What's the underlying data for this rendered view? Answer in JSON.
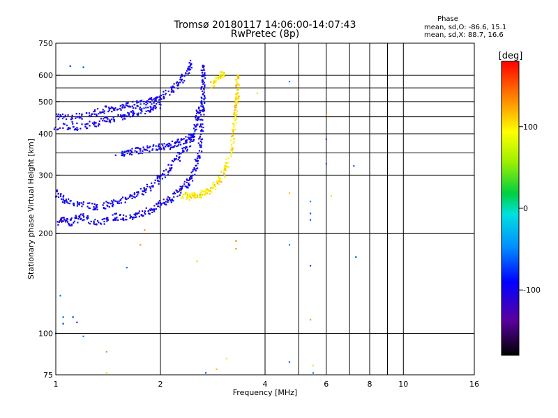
{
  "chart_data": {
    "type": "scatter",
    "title": "Tromsø 20180117 14:06:00-14:07:43",
    "subtitle": "RwPretec (8p)",
    "xlabel": "Frequency [MHz]",
    "ylabel": "Stationary phase Virtual Height [km]",
    "x_scale": "log",
    "y_scale": "log",
    "xlim": [
      1,
      16
    ],
    "ylim": [
      75,
      750
    ],
    "grid": true,
    "x_ticks": [
      1,
      2,
      4,
      6,
      8,
      10,
      16
    ],
    "x_minor": [
      5,
      7,
      9
    ],
    "y_ticks": [
      75,
      100,
      200,
      300,
      400,
      500,
      600,
      750
    ],
    "y_extra_grid": [
      350,
      450,
      550
    ],
    "stats": {
      "title": "Phase",
      "line_o": "mean, sd,O: -86.6, 15.1",
      "line_x": "mean, sd,X:  88.7, 16.6"
    },
    "colorbar": {
      "label": "[deg]",
      "ticks": [
        100,
        0,
        -100
      ],
      "range": [
        -180,
        180
      ]
    },
    "series": [
      {
        "trace": "lower-o-mode",
        "phase": -100,
        "points": [
          [
            1.0,
            215
          ],
          [
            1.05,
            220
          ],
          [
            1.1,
            215
          ],
          [
            1.15,
            222
          ],
          [
            1.2,
            225
          ],
          [
            1.3,
            215
          ],
          [
            1.4,
            220
          ],
          [
            1.5,
            225
          ],
          [
            1.6,
            222
          ],
          [
            1.7,
            228
          ],
          [
            1.8,
            232
          ],
          [
            1.9,
            238
          ],
          [
            2.0,
            245
          ],
          [
            2.1,
            252
          ],
          [
            2.2,
            260
          ],
          [
            2.3,
            270
          ],
          [
            2.4,
            285
          ],
          [
            2.5,
            305
          ],
          [
            2.55,
            330
          ],
          [
            2.6,
            360
          ],
          [
            2.62,
            400
          ],
          [
            2.63,
            440
          ],
          [
            2.64,
            480
          ],
          [
            2.65,
            520
          ],
          [
            2.66,
            560
          ],
          [
            2.66,
            600
          ],
          [
            2.65,
            640
          ]
        ]
      },
      {
        "trace": "lower-o-mode-2",
        "phase": -100,
        "points": [
          [
            1.0,
            265
          ],
          [
            1.05,
            255
          ],
          [
            1.1,
            248
          ],
          [
            1.2,
            245
          ],
          [
            1.3,
            240
          ],
          [
            1.4,
            245
          ],
          [
            1.5,
            248
          ],
          [
            1.6,
            255
          ],
          [
            1.7,
            262
          ],
          [
            1.8,
            270
          ],
          [
            1.9,
            280
          ],
          [
            2.0,
            295
          ],
          [
            2.1,
            310
          ],
          [
            2.2,
            330
          ],
          [
            2.3,
            350
          ],
          [
            2.4,
            370
          ],
          [
            2.5,
            400
          ],
          [
            2.55,
            440
          ],
          [
            2.58,
            480
          ]
        ]
      },
      {
        "trace": "upper-o-mode",
        "phase": -100,
        "points": [
          [
            1.0,
            450
          ],
          [
            1.1,
            445
          ],
          [
            1.2,
            455
          ],
          [
            1.3,
            465
          ],
          [
            1.4,
            475
          ],
          [
            1.5,
            480
          ],
          [
            1.6,
            485
          ],
          [
            1.7,
            490
          ],
          [
            1.8,
            495
          ],
          [
            1.9,
            505
          ],
          [
            2.0,
            515
          ],
          [
            2.1,
            530
          ],
          [
            2.2,
            550
          ],
          [
            2.3,
            580
          ],
          [
            2.4,
            620
          ],
          [
            2.45,
            650
          ]
        ]
      },
      {
        "trace": "upper-o-mode-2",
        "phase": -100,
        "points": [
          [
            1.0,
            420
          ],
          [
            1.1,
            418
          ],
          [
            1.2,
            422
          ],
          [
            1.3,
            430
          ],
          [
            1.4,
            440
          ],
          [
            1.5,
            445
          ],
          [
            1.6,
            455
          ],
          [
            1.7,
            460
          ],
          [
            1.8,
            470
          ],
          [
            1.9,
            478
          ],
          [
            2.0,
            490
          ]
        ]
      },
      {
        "trace": "middle-o-mode",
        "phase": -100,
        "points": [
          [
            1.5,
            345
          ],
          [
            1.6,
            352
          ],
          [
            1.7,
            355
          ],
          [
            1.8,
            358
          ],
          [
            1.9,
            362
          ],
          [
            2.0,
            365
          ],
          [
            2.1,
            368
          ],
          [
            2.2,
            372
          ],
          [
            2.3,
            380
          ],
          [
            2.4,
            385
          ],
          [
            2.5,
            400
          ]
        ]
      },
      {
        "trace": "x-mode",
        "phase": 100,
        "points": [
          [
            2.3,
            262
          ],
          [
            2.4,
            258
          ],
          [
            2.5,
            260
          ],
          [
            2.6,
            262
          ],
          [
            2.7,
            266
          ],
          [
            2.8,
            272
          ],
          [
            2.9,
            282
          ],
          [
            3.0,
            295
          ],
          [
            3.1,
            320
          ],
          [
            3.2,
            360
          ],
          [
            3.25,
            400
          ],
          [
            3.28,
            440
          ],
          [
            3.3,
            480
          ],
          [
            3.32,
            520
          ],
          [
            3.33,
            560
          ],
          [
            3.34,
            600
          ]
        ]
      },
      {
        "trace": "x-mode-upper",
        "phase": 100,
        "points": [
          [
            2.8,
            560
          ],
          [
            2.9,
            580
          ],
          [
            3.0,
            600
          ],
          [
            3.05,
            610
          ]
        ]
      },
      {
        "trace": "scattered",
        "phase": -60,
        "points": [
          [
            1.1,
            640
          ],
          [
            1.2,
            635
          ],
          [
            4.7,
            575
          ],
          [
            6.0,
            385
          ],
          [
            6.0,
            325
          ],
          [
            7.2,
            320
          ],
          [
            5.4,
            250
          ],
          [
            5.4,
            230
          ],
          [
            5.4,
            220
          ],
          [
            4.7,
            185
          ],
          [
            7.3,
            170
          ],
          [
            5.4,
            160
          ],
          [
            1.6,
            158
          ],
          [
            1.03,
            130
          ],
          [
            1.05,
            112
          ],
          [
            1.12,
            112
          ],
          [
            1.2,
            98
          ],
          [
            4.7,
            82
          ],
          [
            5.5,
            76
          ],
          [
            2.7,
            76
          ],
          [
            1.0,
            100
          ],
          [
            1.05,
            107
          ],
          [
            1.15,
            108
          ]
        ]
      },
      {
        "trace": "scattered-warm",
        "phase": 120,
        "points": [
          [
            3.8,
            530
          ],
          [
            6.0,
            455
          ],
          [
            6.2,
            260
          ],
          [
            4.7,
            265
          ],
          [
            3.3,
            180
          ],
          [
            3.3,
            190
          ],
          [
            2.55,
            165
          ],
          [
            1.8,
            205
          ],
          [
            1.75,
            185
          ],
          [
            5.4,
            110
          ],
          [
            5.5,
            80
          ],
          [
            1.4,
            88
          ],
          [
            2.9,
            78
          ],
          [
            3.1,
            84
          ],
          [
            1.4,
            76
          ]
        ]
      }
    ]
  }
}
